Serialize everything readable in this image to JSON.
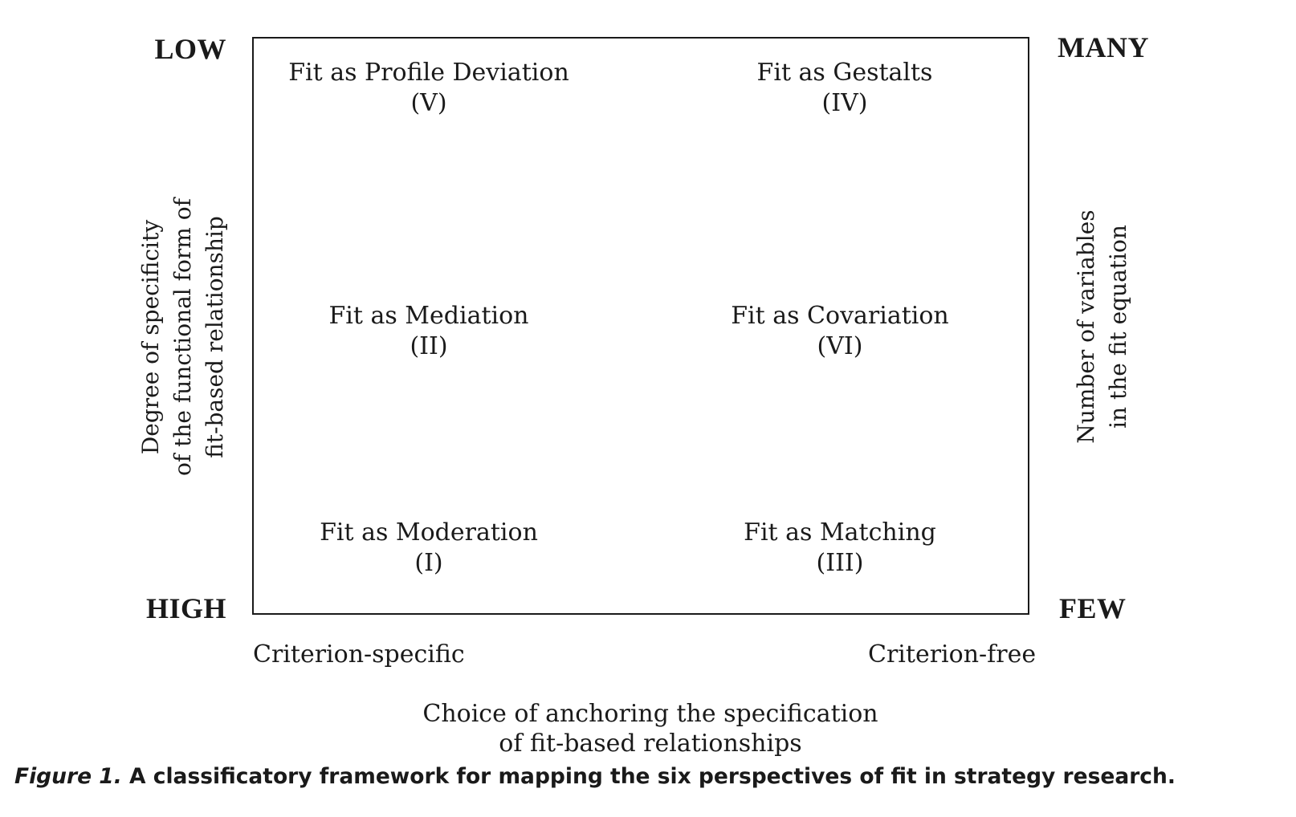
{
  "corners": {
    "top_left": "LOW",
    "bottom_left": "HIGH",
    "top_right": "MANY",
    "bottom_right": "FEW"
  },
  "cells": {
    "profile_deviation": {
      "label": "Fit as Profile Deviation",
      "numeral": "(V)"
    },
    "gestalts": {
      "label": "Fit as Gestalts",
      "numeral": "(IV)"
    },
    "mediation": {
      "label": "Fit as Mediation",
      "numeral": "(II)"
    },
    "covariation": {
      "label": "Fit as Covariation",
      "numeral": "(VI)"
    },
    "moderation": {
      "label": "Fit as Moderation",
      "numeral": "(I)"
    },
    "matching": {
      "label": "Fit as Matching",
      "numeral": "(III)"
    }
  },
  "left_axis": {
    "line1": "Degree of specificity",
    "line2": "of the functional form of",
    "line3": "fit-based relationship"
  },
  "right_axis": {
    "line1": "Number of variables",
    "line2": "in the fit equation"
  },
  "bottom": {
    "left_end": "Criterion-specific",
    "right_end": "Criterion-free",
    "axis_line1": "Choice of anchoring the specification",
    "axis_line2": "of fit-based relationships"
  },
  "caption": {
    "figure": "Figure 1.",
    "text": "A classificatory framework for mapping the six perspectives of fit in strategy research."
  }
}
